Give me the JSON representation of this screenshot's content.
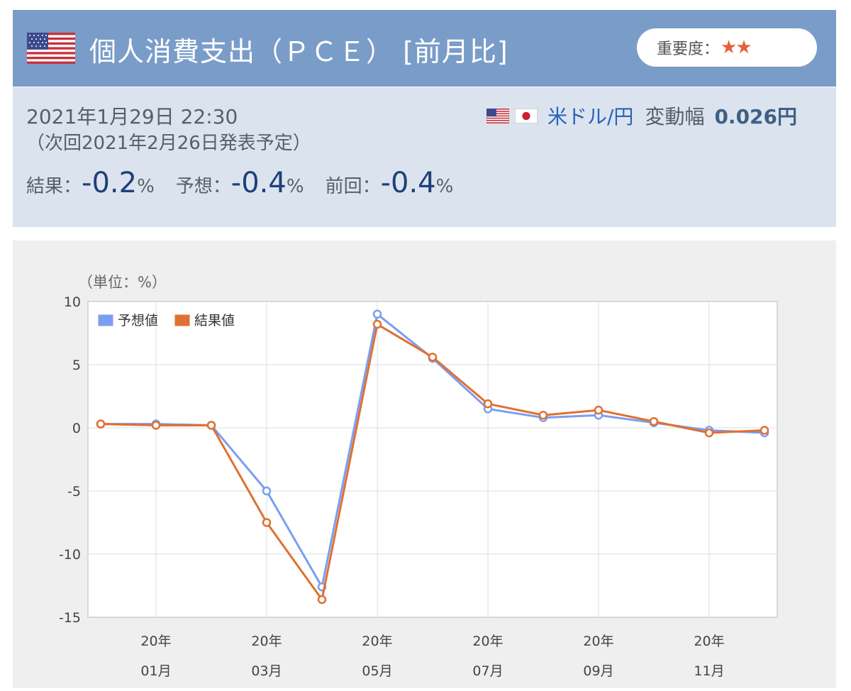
{
  "header": {
    "title": "個人消費支出（ＰＣＥ） [前月比]",
    "importance_label": "重要度：",
    "importance_stars": "★★",
    "flag_icon": "us-flag-icon"
  },
  "info": {
    "datetime": "2021年1月29日 22:30",
    "next_release": "（次回2021年2月26日発表予定）",
    "pair_label": "米ドル/円",
    "range_label": "変動幅",
    "range_value": "0.026円",
    "result_label": "結果：",
    "result_value": "-0.2",
    "forecast_label": "予想：",
    "forecast_value": "-0.4",
    "previous_label": "前回：",
    "previous_value": "-0.4",
    "percent": "%"
  },
  "colors": {
    "header_bg": "#7a9cc8",
    "info_bg": "#dbe4ee",
    "forecast_line": "#7b9ef0",
    "result_line": "#e07030"
  },
  "chart_data": {
    "type": "line",
    "unit_label": "（単位：%）",
    "ylim": [
      -15,
      10
    ],
    "yticks": [
      10,
      5,
      0,
      -5,
      -10,
      -15
    ],
    "x_labels_top": [
      "20年",
      "20年",
      "20年",
      "20年",
      "20年",
      "20年"
    ],
    "x_labels_bottom": [
      "01月",
      "03月",
      "05月",
      "07月",
      "09月",
      "11月"
    ],
    "x": [
      "2019-12",
      "2020-01",
      "2020-02",
      "2020-03",
      "2020-04",
      "2020-05",
      "2020-06",
      "2020-07",
      "2020-08",
      "2020-09",
      "2020-10",
      "2020-11",
      "2020-12"
    ],
    "series": [
      {
        "name": "予想値",
        "color": "#7b9ef0",
        "values": [
          0.3,
          0.3,
          0.2,
          -5.0,
          -12.6,
          9.0,
          5.5,
          1.5,
          0.8,
          1.0,
          0.4,
          -0.2,
          -0.4
        ]
      },
      {
        "name": "結果値",
        "color": "#e07030",
        "values": [
          0.3,
          0.2,
          0.2,
          -7.5,
          -13.6,
          8.2,
          5.6,
          1.9,
          1.0,
          1.4,
          0.5,
          -0.4,
          -0.2
        ]
      }
    ],
    "legend_position": "top-left",
    "grid": true
  }
}
